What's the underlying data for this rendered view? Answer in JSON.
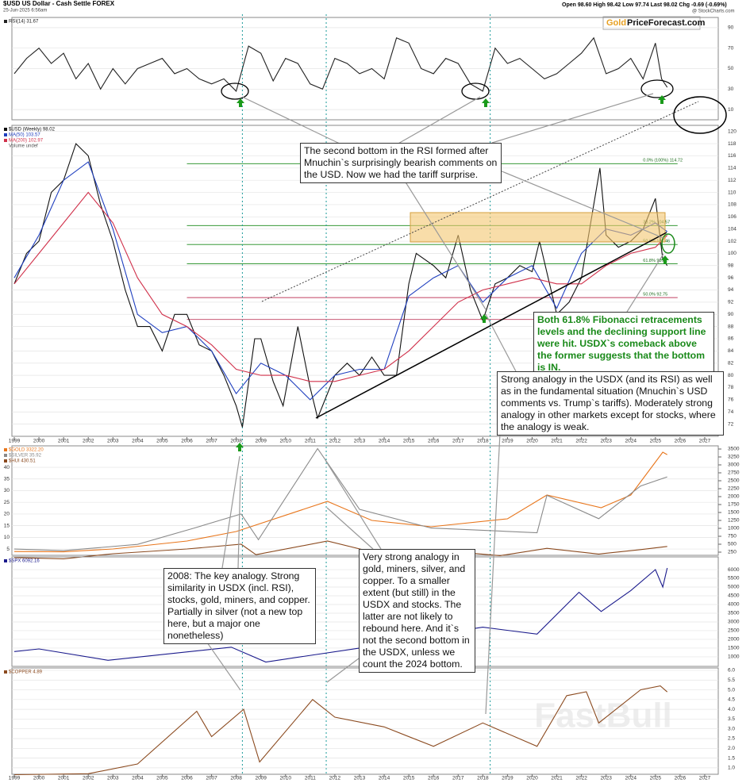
{
  "header": {
    "symbol": "$USD US Dollar - Cash Settle FOREX",
    "date": "25-Jun-2025 6:56am",
    "quote": "Open 98.60  High 98.42  Low 97.74  Last 98.02  Chg -0.69 (-0.69%)",
    "source": "@ StockCharts.com",
    "logo_gold": "Gold",
    "logo_rest": "PriceForecast.com",
    "watermark": "FastBull"
  },
  "annotations": [
    "The second bottom in the RSI formed after Mnuchin`s surprisingly bearish comments on the USD. Now we had the tariff surprise.",
    "Both 61.8% Fibonacci retracements levels and the declining support line were hit. USDX`s comeback above the former suggests that the bottom is IN.",
    "Strong analogy in the USDX (and its RSI) as well as in the fundamental situation (Mnuchin`s USD comments vs. Trump`s tariffs). Moderately strong analogy in other markets except for stocks, where the analogy is weak.",
    "Very strong analogy in gold, miners, silver, and copper. To a smaller extent (but still) in the USDX and stocks. The latter are not likely to rebound here. And it`s not the second bottom in the USDX, unless we count the 2024 bottom.",
    "2008: The key analogy. Strong similarity in USDX (incl. RSI), stocks, gold, miners, and copper. Partially in silver (not a new top here, but a major one nonetheless)"
  ],
  "chart_data": [
    {
      "type": "line",
      "ylim": [
        0,
        100
      ],
      "yticks": [
        10,
        30,
        50,
        70,
        90
      ],
      "xlim": [
        1998.95,
        2027.6
      ],
      "series": [
        {
          "name": "RSI(14) 31.67",
          "color": "#222222",
          "x": [
            1999,
            1999.5,
            2000,
            2000.5,
            2001,
            2001.5,
            2002,
            2002.5,
            2003,
            2003.5,
            2004,
            2004.5,
            2005,
            2005.5,
            2006,
            2006.5,
            2007,
            2007.5,
            2008,
            2008.5,
            2009,
            2009.5,
            2010,
            2010.5,
            2011,
            2011.5,
            2012,
            2012.5,
            2013,
            2013.5,
            2014,
            2014.5,
            2015,
            2015.5,
            2016,
            2016.5,
            2017,
            2017.5,
            2018,
            2018.5,
            2019,
            2019.5,
            2020,
            2020.5,
            2021,
            2021.5,
            2022,
            2022.5,
            2023,
            2023.5,
            2024,
            2024.5,
            2025,
            2025.25,
            2025.48
          ],
          "values": [
            45,
            60,
            70,
            55,
            65,
            40,
            55,
            30,
            50,
            35,
            50,
            55,
            60,
            45,
            50,
            40,
            35,
            40,
            28,
            72,
            65,
            38,
            60,
            55,
            35,
            30,
            60,
            55,
            45,
            50,
            40,
            80,
            75,
            50,
            45,
            60,
            55,
            35,
            28,
            70,
            55,
            60,
            50,
            40,
            45,
            55,
            65,
            80,
            45,
            50,
            60,
            40,
            75,
            40,
            31.67
          ]
        }
      ]
    },
    {
      "type": "line",
      "ylim": [
        70,
        121
      ],
      "xlim": [
        1998.95,
        2027.6
      ],
      "yticks": [
        72,
        74,
        76,
        78,
        80,
        82,
        84,
        86,
        88,
        90,
        92,
        94,
        96,
        98,
        100,
        102,
        104,
        106,
        108,
        110,
        112,
        114,
        116,
        118,
        120
      ],
      "xticks": [
        1999,
        2000,
        2001,
        2002,
        2003,
        2004,
        2005,
        2006,
        2007,
        2008,
        2009,
        2010,
        2011,
        2012,
        2013,
        2014,
        2015,
        2016,
        2017,
        2018,
        2019,
        2020,
        2021,
        2022,
        2023,
        2024,
        2025,
        2026,
        2027
      ],
      "extra_legend": "Volume undef",
      "markers_x": [
        2008.25,
        2011.65,
        2018.3
      ],
      "fib_levels": [
        {
          "value": 114.72,
          "label": "0.0% (100%) 114.72"
        },
        {
          "value": 104.57,
          "label": "38.2% 104.57"
        },
        {
          "value": 101.46,
          "label": "50.0% 101.46"
        },
        {
          "value": 98.31,
          "label": "61.8% 98.31"
        },
        {
          "value": 92.75,
          "label": "50.0% 92.75"
        },
        {
          "value": 89.16,
          "label": "100.0% 89.16"
        }
      ],
      "series": [
        {
          "name": "$USD (Weekly) 98.02",
          "color": "#111111",
          "x": [
            1999,
            1999.5,
            2000,
            2000.5,
            2001,
            2001.5,
            2002,
            2002.5,
            2003,
            2003.5,
            2004,
            2004.5,
            2005,
            2005.5,
            2006,
            2006.5,
            2007,
            2007.5,
            2008,
            2008.25,
            2008.75,
            2009,
            2009.5,
            2009.9,
            2010.5,
            2011,
            2011.3,
            2012,
            2012.5,
            2013,
            2013.5,
            2014,
            2014.5,
            2015,
            2015.3,
            2016,
            2016.5,
            2017,
            2017.5,
            2018,
            2018.5,
            2019,
            2019.5,
            2020,
            2020.3,
            2021,
            2021.5,
            2022,
            2022.75,
            2023,
            2023.5,
            2024,
            2024.5,
            2025,
            2025.3,
            2025.48
          ],
          "values": [
            95,
            100,
            102,
            110,
            112,
            118,
            116,
            108,
            102,
            94,
            88,
            88,
            84,
            90,
            90,
            85,
            84,
            80,
            75,
            71.5,
            86,
            86,
            79,
            75,
            88,
            78,
            73,
            80,
            82,
            80,
            83,
            80,
            80,
            95,
            100,
            98,
            96,
            103,
            94,
            89,
            95,
            96,
            98,
            97,
            102,
            90,
            92,
            96,
            114,
            103,
            101,
            102,
            104,
            109,
            99,
            98
          ]
        },
        {
          "name": "MA(50) 103.57",
          "color": "#1f3fbf",
          "x": [
            1999,
            2000,
            2001,
            2002,
            2003,
            2004,
            2005,
            2006,
            2007,
            2008,
            2009,
            2010,
            2011,
            2012,
            2013,
            2014,
            2015,
            2016,
            2017,
            2018,
            2019,
            2020,
            2021,
            2022,
            2023,
            2024,
            2025,
            2025.48
          ],
          "values": [
            96,
            103,
            112,
            115,
            104,
            90,
            87,
            88,
            84,
            77,
            82,
            80,
            76,
            80,
            81,
            81,
            93,
            96,
            98,
            92,
            96,
            98,
            91,
            100,
            104,
            103,
            105,
            103.57
          ]
        },
        {
          "name": "MA(200) 102.97",
          "color": "#d0304a",
          "x": [
            1999,
            2000,
            2001,
            2002,
            2003,
            2004,
            2005,
            2006,
            2007,
            2008,
            2009,
            2010,
            2011,
            2012,
            2013,
            2014,
            2015,
            2016,
            2017,
            2018,
            2019,
            2020,
            2021,
            2022,
            2023,
            2024,
            2025,
            2025.48
          ],
          "values": [
            95,
            100,
            105,
            110,
            105,
            96,
            90,
            88,
            85,
            81,
            80,
            80,
            79,
            79,
            80,
            81,
            84,
            88,
            92,
            94,
            95,
            96,
            95,
            95,
            98,
            100,
            101,
            102.97
          ]
        }
      ]
    },
    {
      "type": "line",
      "ylim": [
        2.3,
        49.2
      ],
      "yticks": [
        5,
        10,
        15,
        20,
        25,
        30,
        35,
        40
      ],
      "y2lim": [
        150,
        3600
      ],
      "y2ticks": [
        250,
        500,
        750,
        1000,
        1250,
        1500,
        1750,
        2000,
        2250,
        2500,
        2750,
        3000,
        3250,
        3500
      ],
      "series": [
        {
          "name": "$GOLD 3322.20",
          "color": "#e8761c",
          "axis": "y2",
          "x": [
            1999,
            2001,
            2003,
            2006,
            2008,
            2011.7,
            2013.5,
            2015.9,
            2019,
            2020.6,
            2022.8,
            2024,
            2025.3,
            2025.48
          ],
          "values": [
            270,
            260,
            350,
            600,
            900,
            1850,
            1250,
            1050,
            1300,
            2050,
            1650,
            2050,
            3400,
            3322.2
          ]
        },
        {
          "name": "$SILVER 35.92",
          "color": "#8a8a8a",
          "x": [
            1999,
            2001,
            2004,
            2006.3,
            2008.2,
            2008.9,
            2011.3,
            2013,
            2015.9,
            2020.2,
            2020.6,
            2022.7,
            2024.4,
            2025.48
          ],
          "values": [
            5,
            4.3,
            7,
            14,
            20,
            9,
            48,
            22,
            14,
            12,
            28,
            18,
            32,
            35.92
          ]
        },
        {
          "name": "$HUI 430.51",
          "color": "#8b4a1f",
          "axis": "y2",
          "x": [
            1999,
            2001,
            2003,
            2006,
            2008.2,
            2008.8,
            2011.7,
            2013.8,
            2015.9,
            2016.6,
            2018.7,
            2020.6,
            2022.7,
            2024.4,
            2025.48
          ],
          "values": [
            80,
            40,
            200,
            350,
            500,
            170,
            600,
            200,
            110,
            280,
            140,
            370,
            190,
            330,
            430.51
          ]
        }
      ]
    },
    {
      "type": "line",
      "ylim": [
        450,
        6730
      ],
      "yticks": [
        1000,
        1500,
        2000,
        2500,
        3000,
        3500,
        4000,
        4500,
        5000,
        5500,
        6000
      ],
      "series": [
        {
          "name": "$SPX 6092.16",
          "color": "#1a1a8c",
          "x": [
            1999,
            2000,
            2002.8,
            2007.8,
            2009.2,
            2013,
            2015,
            2018,
            2020.2,
            2021.9,
            2022.8,
            2024,
            2025,
            2025.3,
            2025.48
          ],
          "values": [
            1300,
            1450,
            800,
            1550,
            700,
            1500,
            2050,
            2700,
            2300,
            4700,
            3600,
            4800,
            6000,
            5000,
            6092.16
          ]
        }
      ]
    },
    {
      "type": "line",
      "ylim": [
        0.67,
        6.12
      ],
      "xticks": [
        1999,
        2000,
        2001,
        2002,
        2003,
        2004,
        2005,
        2006,
        2007,
        2008,
        2009,
        2010,
        2011,
        2012,
        2013,
        2014,
        2015,
        2016,
        2017,
        2018,
        2019,
        2020,
        2021,
        2022,
        2023,
        2024,
        2025,
        2026,
        2027
      ],
      "yticks": [
        {
          "value": 1,
          "label": "1.0"
        },
        1.5,
        {
          "value": 2,
          "label": "2.0"
        },
        2.5,
        {
          "value": 3,
          "label": "3.0"
        },
        3.5,
        {
          "value": 4,
          "label": "4.0"
        },
        4.5,
        {
          "value": 5,
          "label": "5.0"
        },
        5.5,
        {
          "value": 6,
          "label": "6.0"
        }
      ],
      "series": [
        {
          "name": "$COPPER 4.89",
          "color": "#8b4a1f",
          "x": [
            1999,
            2002,
            2004,
            2006.4,
            2007,
            2008.3,
            2008.95,
            2011.1,
            2012,
            2014,
            2016,
            2018,
            2020.2,
            2021.4,
            2022.2,
            2022.7,
            2024.4,
            2025.2,
            2025.48
          ],
          "values": [
            0.65,
            0.7,
            1.2,
            3.9,
            2.6,
            4.0,
            1.3,
            4.5,
            3.6,
            3.1,
            2.1,
            3.3,
            2.1,
            4.7,
            4.9,
            3.3,
            5.0,
            5.2,
            4.89
          ]
        }
      ]
    }
  ]
}
